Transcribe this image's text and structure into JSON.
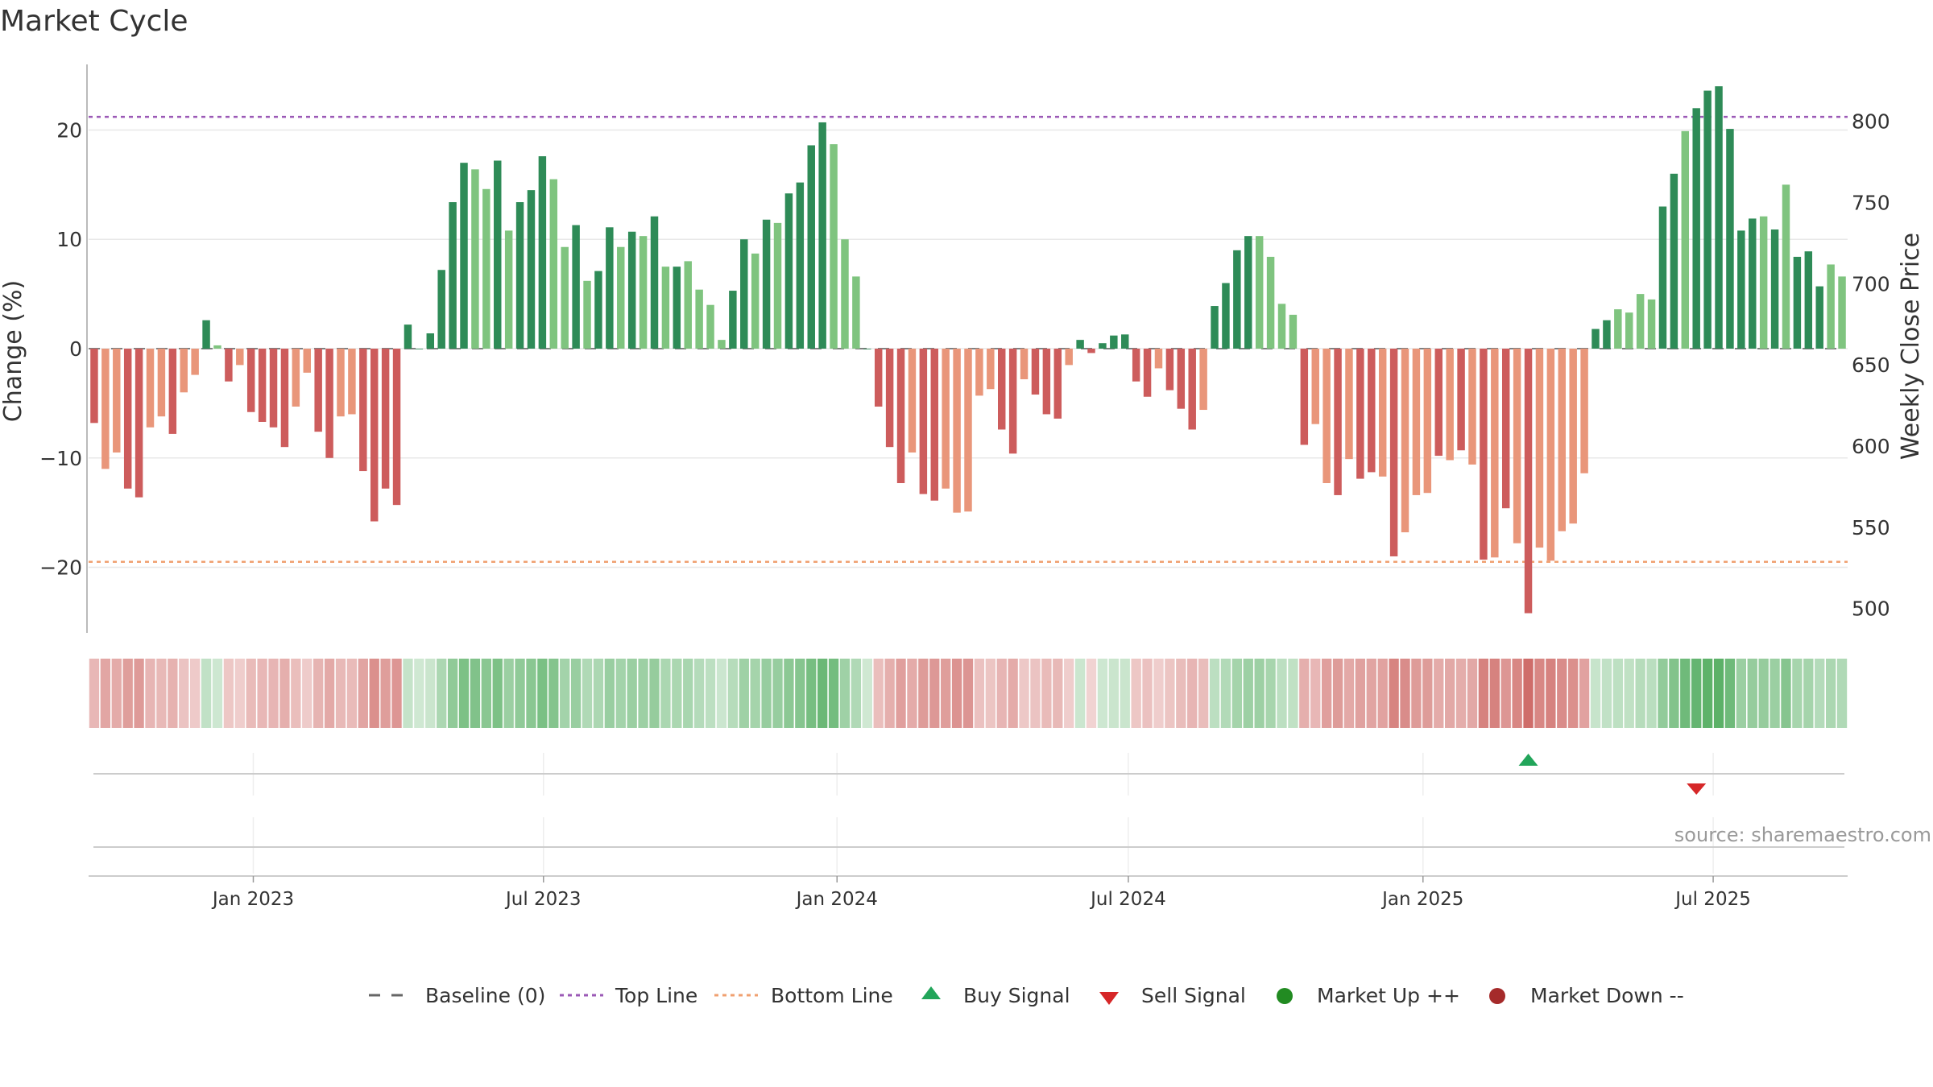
{
  "chart_data": {
    "type": "bar",
    "title": "Market Cycle",
    "ylabel_left": "Change (%)",
    "ylabel_right": "Weekly Close Price",
    "ylim_left": [
      -26,
      26
    ],
    "yticks_left": [
      -20,
      -10,
      0,
      10,
      20
    ],
    "ytick_labels_left": [
      "−20",
      "−10",
      "0",
      "10",
      "20"
    ],
    "ylim_right": [
      485,
      835
    ],
    "yticks_right": [
      500,
      550,
      600,
      650,
      700,
      750,
      800
    ],
    "xticks": [
      "Jan 2023",
      "Jul 2023",
      "Jan 2024",
      "Jul 2024",
      "Jan 2025",
      "Jul 2025"
    ],
    "top_line": 21.2,
    "bottom_line": -19.5,
    "grid": true,
    "source_text": "source: sharemaestro.com",
    "colors": {
      "up_strong": "#2e8b57",
      "up_light": "#7fc47f",
      "down_strong": "#cd5c5c",
      "down_light": "#e9967a",
      "top_line": "#9b59b6",
      "bottom_line": "#f0a070",
      "buy": "#22a55a",
      "sell": "#d62728",
      "market_up": "#228b22",
      "market_down": "#a52a2a"
    },
    "values": [
      -6.8,
      -11,
      -9.5,
      -12.8,
      -13.6,
      -7.2,
      -6.2,
      -7.8,
      -4,
      -2.4,
      2.6,
      0.3,
      -3,
      -1.5,
      -5.8,
      -6.7,
      -7.2,
      -9,
      -5.3,
      -2.2,
      -7.6,
      -10,
      -6.2,
      -6,
      -11.2,
      -15.8,
      -12.8,
      -14.3,
      2.2,
      0,
      1.4,
      7.2,
      13.4,
      17,
      16.4,
      14.6,
      17.2,
      10.8,
      13.4,
      14.5,
      17.6,
      15.5,
      9.3,
      11.3,
      6.2,
      7.1,
      11.1,
      9.3,
      10.7,
      10.3,
      12.1,
      7.5,
      7.5,
      8,
      5.4,
      4,
      0.8,
      5.3,
      10,
      8.7,
      11.8,
      11.5,
      14.2,
      15.2,
      18.6,
      20.7,
      18.7,
      10,
      6.6,
      0,
      -5.3,
      -9,
      -12.3,
      -9.5,
      -13.3,
      -13.9,
      -12.8,
      -15,
      -14.9,
      -4.3,
      -3.7,
      -7.4,
      -9.6,
      -2.8,
      -4.2,
      -6,
      -6.4,
      -1.5,
      0.8,
      -0.4,
      0.5,
      1.2,
      1.3,
      -3,
      -4.4,
      -1.8,
      -3.8,
      -5.5,
      -7.4,
      -5.6,
      3.9,
      6,
      9,
      10.3,
      10.3,
      8.4,
      4.1,
      3.1,
      -8.8,
      -6.9,
      -12.3,
      -13.4,
      -10.1,
      -11.9,
      -11.3,
      -11.7,
      -19,
      -16.8,
      -13.4,
      -13.2,
      -9.8,
      -10.2,
      -9.3,
      -10.6,
      -19.3,
      -19.1,
      -14.6,
      -17.8,
      -24.2,
      -18.2,
      -19.4,
      -16.7,
      -16,
      -11.4,
      1.8,
      2.6,
      3.6,
      3.3,
      5,
      4.5,
      13,
      16,
      19.9,
      22,
      23.6,
      24,
      20.1,
      10.8,
      11.9,
      12.1,
      10.9,
      15,
      8.4,
      8.9,
      5.7,
      7.7,
      6.6
    ],
    "light_indices": [
      1,
      2,
      5,
      6,
      8,
      9,
      11,
      13,
      18,
      19,
      22,
      23,
      34,
      35,
      37,
      41,
      42,
      44,
      47,
      49,
      51,
      53,
      54,
      55,
      56,
      59,
      61,
      66,
      67,
      68,
      73,
      76,
      77,
      78,
      79,
      80,
      83,
      87,
      95,
      99,
      104,
      105,
      106,
      107,
      109,
      110,
      112,
      115,
      117,
      118,
      119,
      121,
      123,
      125,
      127,
      129,
      130,
      131,
      132,
      133,
      136,
      137,
      138,
      139,
      142,
      149,
      151,
      155,
      156,
      158
    ],
    "signals": {
      "buy_index": 128,
      "sell_index": 143
    },
    "legend": [
      "Baseline (0)",
      "Top Line",
      "Bottom Line",
      "Buy Signal",
      "Sell Signal",
      "Market Up ++",
      "Market Down --"
    ]
  }
}
